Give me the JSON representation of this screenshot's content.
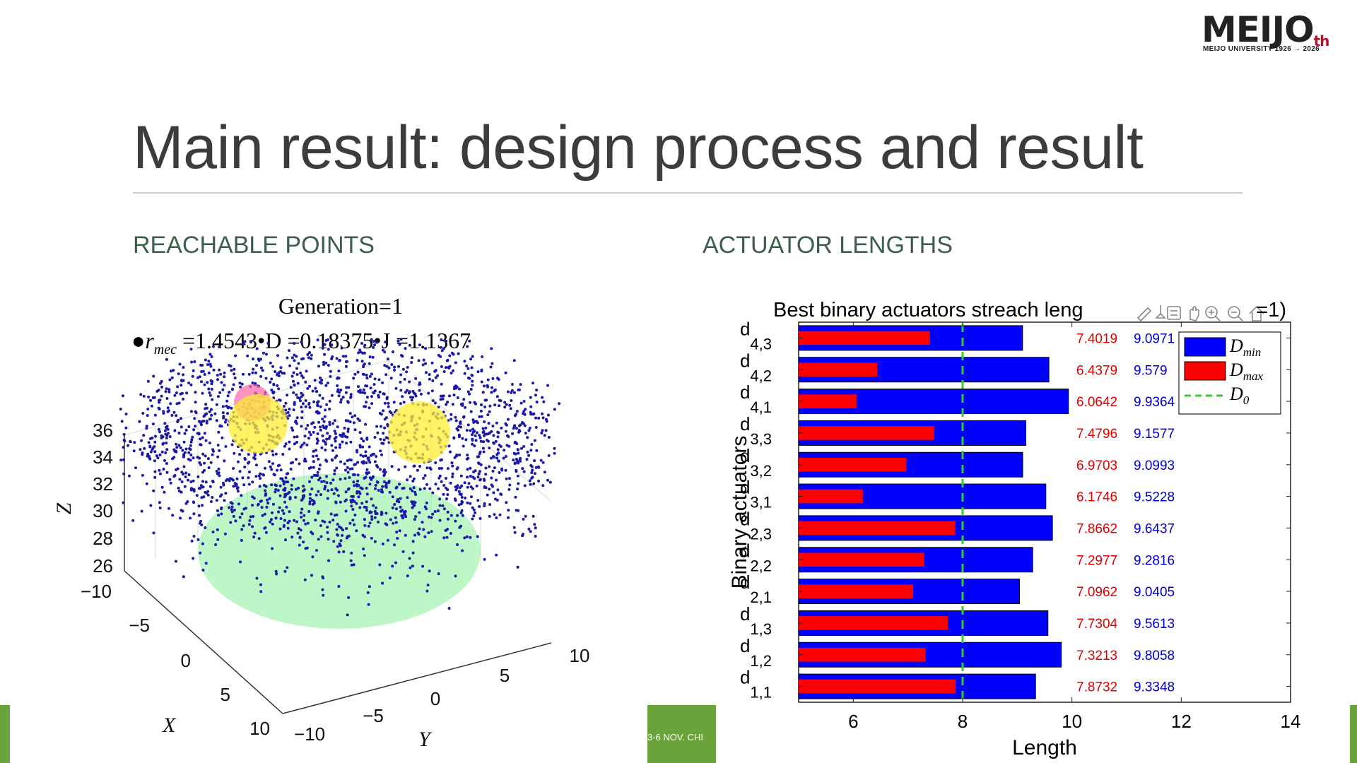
{
  "logo": {
    "text_main": "MEIJO",
    "text_sup": "th",
    "text_sub": "MEIJO UNIVERSITY 1926 → 2026"
  },
  "title": "Main result: design process and result",
  "sections": {
    "left": "REACHABLE POINTS",
    "right": "ACTUATOR LENGTHS"
  },
  "footer": {
    "text": "3-6 NOV. CHI"
  },
  "colors": {
    "accent_green": "#6aa33a",
    "title": "#3c3c3c",
    "subtitle": "#3d5e4c",
    "dmin": "#0000ff",
    "dmax": "#ff0000",
    "d0": "#33cc33",
    "points": "#1a1aa6",
    "sphere_yellow": "#ffee33",
    "sphere_pink": "#ff66aa",
    "surface_green": "#88ee99"
  },
  "scatter": {
    "title_line1": "Generation=1",
    "title_line2": "•rₘₑₖ =1.4543•D =0.18375•J =1.1367",
    "title_r_label": "r",
    "title_r_sub": "mec",
    "title_rest": " =1.4543•D =0.18375•J =1.1367",
    "z_label": "Z",
    "x_label": "X",
    "y_label": "Y",
    "z_ticks": [
      "36",
      "34",
      "32",
      "30",
      "28",
      "26"
    ],
    "x_ticks": [
      "−10",
      "−5",
      "0",
      "5",
      "10"
    ],
    "y_ticks": [
      "−10",
      "−5",
      "0",
      "5",
      "10"
    ]
  },
  "chart_data": {
    "type": "bar",
    "title": "Best binary actuators streach leng",
    "title_tail": "=1)",
    "xlabel": "Length",
    "ylabel": "Binary actuators",
    "xlim": [
      5,
      14
    ],
    "xticks": [
      "6",
      "8",
      "10",
      "12",
      "14"
    ],
    "categories": [
      {
        "base": "d",
        "sub": "4,3"
      },
      {
        "base": "d",
        "sub": "4,2"
      },
      {
        "base": "d",
        "sub": "4,1"
      },
      {
        "base": "d",
        "sub": "3,3"
      },
      {
        "base": "d",
        "sub": "3,2"
      },
      {
        "base": "d",
        "sub": "3,1"
      },
      {
        "base": "d",
        "sub": "2,3"
      },
      {
        "base": "d",
        "sub": "2,2"
      },
      {
        "base": "d",
        "sub": "2,1"
      },
      {
        "base": "d",
        "sub": "1,3"
      },
      {
        "base": "d",
        "sub": "1,2"
      },
      {
        "base": "d",
        "sub": "1,1"
      }
    ],
    "series": [
      {
        "name": "D_min",
        "values": [
          9.0971,
          9.579,
          9.9364,
          9.1577,
          9.0993,
          9.5228,
          9.6437,
          9.2816,
          9.0405,
          9.5613,
          9.8058,
          9.3348
        ]
      },
      {
        "name": "D_max",
        "values": [
          7.4019,
          6.4379,
          6.0642,
          7.4796,
          6.9703,
          6.1746,
          7.8662,
          7.2977,
          7.0962,
          7.7304,
          7.3213,
          7.8732
        ]
      }
    ],
    "value_labels_red": [
      "7.4019",
      "6.4379",
      "6.0642",
      "7.4796",
      "6.9703",
      "6.1746",
      "7.8662",
      "7.2977",
      "7.0962",
      "7.7304",
      "7.3213",
      "7.8732"
    ],
    "value_labels_blue": [
      "9.0971",
      "9.579",
      "9.9364",
      "9.1577",
      "9.0993",
      "9.5228",
      "9.6437",
      "9.2816",
      "9.0405",
      "9.5613",
      "9.8058",
      "9.3348"
    ],
    "reference_line": {
      "name": "D_0",
      "x": 8
    },
    "legend": {
      "placement": "top-right",
      "entries": [
        {
          "base": "D",
          "sub": "min"
        },
        {
          "base": "D",
          "sub": "max"
        },
        {
          "base": "D",
          "sub": "0"
        }
      ]
    },
    "grid": false
  }
}
